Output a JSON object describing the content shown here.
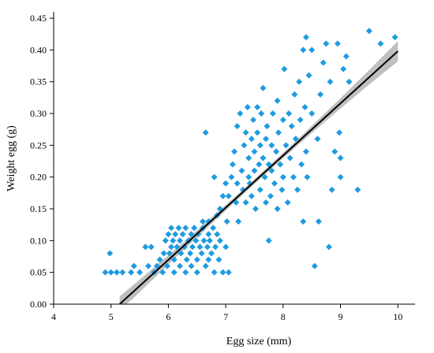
{
  "chart_data": {
    "type": "scatter",
    "xlabel": "Egg size (mm)",
    "ylabel": "Weight egg (g)",
    "xlim": [
      4,
      10.3
    ],
    "ylim": [
      0,
      0.46
    ],
    "xticks": [
      4,
      5,
      6,
      7,
      8,
      9,
      10
    ],
    "yticks": [
      0.0,
      0.05,
      0.1,
      0.15,
      0.2,
      0.25,
      0.3,
      0.35,
      0.4,
      0.45
    ],
    "ytick_labels": [
      "0.00",
      "0.05",
      "0.10",
      "0.15",
      "0.20",
      "0.25",
      "0.30",
      "0.35",
      "0.40",
      "0.45"
    ],
    "grid": false,
    "marker": "diamond",
    "marker_color": "#1f9be0",
    "fit_line_color": "#000000",
    "confidence_band_color": "#bfbfbf",
    "fit": {
      "x_start": 5.15,
      "x_end": 10.0,
      "y_at_start": 0.0,
      "y_at_end": 0.398
    },
    "confidence_band": {
      "half_width_at_start": 0.012,
      "half_width_at_center": 0.004,
      "half_width_at_end": 0.016
    },
    "points": [
      [
        4.9,
        0.05
      ],
      [
        4.98,
        0.08
      ],
      [
        5.0,
        0.05
      ],
      [
        5.1,
        0.05
      ],
      [
        5.2,
        0.05
      ],
      [
        5.35,
        0.05
      ],
      [
        5.4,
        0.06
      ],
      [
        5.5,
        0.05
      ],
      [
        5.6,
        0.09
      ],
      [
        5.65,
        0.06
      ],
      [
        5.7,
        0.09
      ],
      [
        5.75,
        0.05
      ],
      [
        5.8,
        0.06
      ],
      [
        5.85,
        0.07
      ],
      [
        5.9,
        0.05
      ],
      [
        5.92,
        0.08
      ],
      [
        5.95,
        0.1
      ],
      [
        5.98,
        0.06
      ],
      [
        6.0,
        0.11
      ],
      [
        6.02,
        0.08
      ],
      [
        6.05,
        0.12
      ],
      [
        6.05,
        0.09
      ],
      [
        6.08,
        0.1
      ],
      [
        6.1,
        0.07
      ],
      [
        6.1,
        0.05
      ],
      [
        6.12,
        0.11
      ],
      [
        6.15,
        0.09
      ],
      [
        6.18,
        0.12
      ],
      [
        6.2,
        0.1
      ],
      [
        6.2,
        0.06
      ],
      [
        6.22,
        0.08
      ],
      [
        6.25,
        0.11
      ],
      [
        6.28,
        0.09
      ],
      [
        6.3,
        0.05
      ],
      [
        6.3,
        0.12
      ],
      [
        6.32,
        0.07
      ],
      [
        6.35,
        0.1
      ],
      [
        6.38,
        0.08
      ],
      [
        6.4,
        0.11
      ],
      [
        6.4,
        0.06
      ],
      [
        6.42,
        0.09
      ],
      [
        6.45,
        0.12
      ],
      [
        6.48,
        0.1
      ],
      [
        6.5,
        0.07
      ],
      [
        6.5,
        0.05
      ],
      [
        6.52,
        0.11
      ],
      [
        6.55,
        0.09
      ],
      [
        6.58,
        0.08
      ],
      [
        6.6,
        0.12
      ],
      [
        6.62,
        0.1
      ],
      [
        6.65,
        0.06
      ],
      [
        6.68,
        0.09
      ],
      [
        6.7,
        0.11
      ],
      [
        6.7,
        0.07
      ],
      [
        6.72,
        0.1
      ],
      [
        6.75,
        0.08
      ],
      [
        6.78,
        0.12
      ],
      [
        6.8,
        0.05
      ],
      [
        6.82,
        0.09
      ],
      [
        6.85,
        0.11
      ],
      [
        6.88,
        0.07
      ],
      [
        6.9,
        0.1
      ],
      [
        6.95,
        0.05
      ],
      [
        7.0,
        0.09
      ],
      [
        7.05,
        0.05
      ],
      [
        6.65,
        0.27
      ],
      [
        6.6,
        0.13
      ],
      [
        6.7,
        0.13
      ],
      [
        6.8,
        0.2
      ],
      [
        6.85,
        0.14
      ],
      [
        6.9,
        0.15
      ],
      [
        6.95,
        0.17
      ],
      [
        7.0,
        0.19
      ],
      [
        7.02,
        0.13
      ],
      [
        7.05,
        0.17
      ],
      [
        7.1,
        0.2
      ],
      [
        7.12,
        0.22
      ],
      [
        7.15,
        0.24
      ],
      [
        7.18,
        0.16
      ],
      [
        7.2,
        0.28
      ],
      [
        7.2,
        0.19
      ],
      [
        7.22,
        0.13
      ],
      [
        7.25,
        0.3
      ],
      [
        7.28,
        0.21
      ],
      [
        7.3,
        0.18
      ],
      [
        7.32,
        0.25
      ],
      [
        7.35,
        0.27
      ],
      [
        7.35,
        0.16
      ],
      [
        7.38,
        0.31
      ],
      [
        7.4,
        0.23
      ],
      [
        7.4,
        0.2
      ],
      [
        7.42,
        0.19
      ],
      [
        7.45,
        0.26
      ],
      [
        7.45,
        0.17
      ],
      [
        7.48,
        0.29
      ],
      [
        7.5,
        0.24
      ],
      [
        7.5,
        0.21
      ],
      [
        7.52,
        0.15
      ],
      [
        7.55,
        0.31
      ],
      [
        7.55,
        0.27
      ],
      [
        7.58,
        0.22
      ],
      [
        7.6,
        0.25
      ],
      [
        7.6,
        0.18
      ],
      [
        7.62,
        0.3
      ],
      [
        7.65,
        0.34
      ],
      [
        7.65,
        0.23
      ],
      [
        7.68,
        0.2
      ],
      [
        7.7,
        0.26
      ],
      [
        7.7,
        0.16
      ],
      [
        7.72,
        0.28
      ],
      [
        7.75,
        0.22
      ],
      [
        7.75,
        0.1
      ],
      [
        7.78,
        0.17
      ],
      [
        7.8,
        0.25
      ],
      [
        7.8,
        0.21
      ],
      [
        7.82,
        0.3
      ],
      [
        7.85,
        0.19
      ],
      [
        7.88,
        0.24
      ],
      [
        7.9,
        0.32
      ],
      [
        7.9,
        0.15
      ],
      [
        7.92,
        0.27
      ],
      [
        7.95,
        0.22
      ],
      [
        7.98,
        0.18
      ],
      [
        8.0,
        0.29
      ],
      [
        8.0,
        0.2
      ],
      [
        8.02,
        0.37
      ],
      [
        8.05,
        0.25
      ],
      [
        8.08,
        0.16
      ],
      [
        8.1,
        0.3
      ],
      [
        8.12,
        0.23
      ],
      [
        8.15,
        0.28
      ],
      [
        8.18,
        0.2
      ],
      [
        8.2,
        0.33
      ],
      [
        8.22,
        0.26
      ],
      [
        8.25,
        0.18
      ],
      [
        8.28,
        0.35
      ],
      [
        8.3,
        0.29
      ],
      [
        8.32,
        0.22
      ],
      [
        8.35,
        0.4
      ],
      [
        8.35,
        0.13
      ],
      [
        8.38,
        0.31
      ],
      [
        8.4,
        0.24
      ],
      [
        8.4,
        0.42
      ],
      [
        8.42,
        0.2
      ],
      [
        8.45,
        0.36
      ],
      [
        8.5,
        0.3
      ],
      [
        8.5,
        0.4
      ],
      [
        8.55,
        0.06
      ],
      [
        8.6,
        0.26
      ],
      [
        8.62,
        0.13
      ],
      [
        8.65,
        0.33
      ],
      [
        8.7,
        0.38
      ],
      [
        8.75,
        0.41
      ],
      [
        8.8,
        0.09
      ],
      [
        8.82,
        0.35
      ],
      [
        8.85,
        0.18
      ],
      [
        8.9,
        0.24
      ],
      [
        8.95,
        0.41
      ],
      [
        8.98,
        0.27
      ],
      [
        9.0,
        0.23
      ],
      [
        9.0,
        0.2
      ],
      [
        9.05,
        0.37
      ],
      [
        9.1,
        0.39
      ],
      [
        9.15,
        0.35
      ],
      [
        9.3,
        0.18
      ],
      [
        9.5,
        0.43
      ],
      [
        9.7,
        0.41
      ],
      [
        9.95,
        0.42
      ]
    ]
  }
}
